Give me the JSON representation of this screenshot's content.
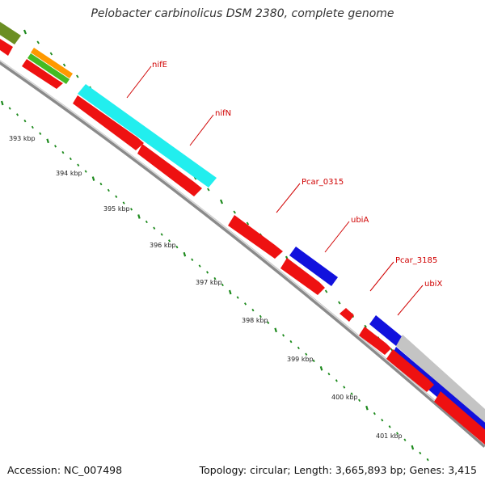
{
  "title": "Pelobacter carbinolicus DSM 2380, complete genome",
  "footer": {
    "accession": "Accession: NC_007498",
    "summary": "Topology: circular; Length: 3,665,893 bp; Genes: 3,415"
  },
  "ruler_labels": [
    "393 kbp",
    "394 kbp",
    "395 kbp",
    "396 kbp",
    "397 kbp",
    "398 kbp",
    "399 kbp",
    "400 kbp",
    "401 kbp"
  ],
  "gene_labels": [
    "nifE",
    "nifN",
    "Pcar_0315",
    "ubiA",
    "Pcar_3185",
    "ubiX"
  ],
  "colors": {
    "backbone": "#8a8a8a",
    "red_gene": "#ee1111",
    "cyan_gene": "#22eeee",
    "blue_gene": "#1111dd",
    "gray_gene": "#c4c4c4",
    "olive_gene": "#6b8e23",
    "orange_gene": "#ff9900",
    "green_gene": "#44bb22",
    "tick": "#1d8a1d",
    "label": "#d00000"
  }
}
